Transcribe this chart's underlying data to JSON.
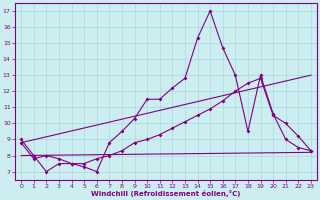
{
  "xlabel": "Windchill (Refroidissement éolien,°C)",
  "background_color": "#cceef0",
  "line_color": "#800080",
  "grid_color": "#aad8dc",
  "xlim": [
    -0.5,
    23.5
  ],
  "ylim": [
    6.5,
    17.5
  ],
  "xticks": [
    0,
    1,
    2,
    3,
    4,
    5,
    6,
    7,
    8,
    9,
    10,
    11,
    12,
    13,
    14,
    15,
    16,
    17,
    18,
    19,
    20,
    21,
    22,
    23
  ],
  "yticks": [
    7,
    8,
    9,
    10,
    11,
    12,
    13,
    14,
    15,
    16,
    17
  ],
  "series1_x": [
    0,
    1,
    2,
    3,
    4,
    5,
    6,
    7,
    8,
    9,
    10,
    11,
    12,
    13,
    14,
    15,
    16,
    17,
    18,
    19,
    20,
    21,
    22,
    23
  ],
  "series1_y": [
    9.0,
    8.0,
    7.0,
    7.5,
    7.5,
    7.3,
    7.0,
    8.8,
    9.5,
    10.3,
    11.5,
    11.5,
    12.2,
    12.8,
    15.3,
    17.0,
    14.7,
    13.0,
    9.5,
    13.0,
    10.6,
    9.0,
    8.5,
    8.3
  ],
  "series2_x": [
    0,
    1,
    2,
    3,
    4,
    5,
    6,
    7,
    8,
    9,
    10,
    11,
    12,
    13,
    14,
    15,
    16,
    17,
    18,
    19,
    20,
    21,
    22,
    23
  ],
  "series2_y": [
    8.8,
    7.8,
    8.0,
    7.8,
    7.5,
    7.5,
    7.8,
    8.0,
    8.3,
    8.8,
    9.0,
    9.3,
    9.7,
    10.1,
    10.5,
    10.9,
    11.4,
    12.0,
    12.5,
    12.8,
    10.5,
    10.0,
    9.2,
    8.3
  ],
  "series3_x": [
    0,
    23
  ],
  "series3_y": [
    8.8,
    13.0
  ],
  "series4_x": [
    0,
    23
  ],
  "series4_y": [
    8.0,
    8.2
  ]
}
